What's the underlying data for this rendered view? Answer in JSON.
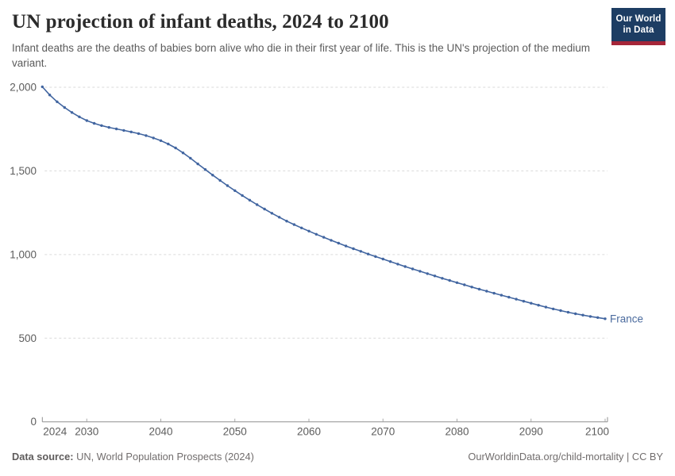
{
  "header": {
    "title": "UN projection of infant deaths, 2024 to 2100",
    "subtitle": "Infant deaths are the deaths of babies born alive who die in their first year of life. This is the UN's projection of the medium variant.",
    "logo": {
      "line1": "Our World",
      "line2": "in Data"
    }
  },
  "footer": {
    "datasource_label": "Data source:",
    "datasource_text": " UN, World Population Prospects (2024)",
    "link_text": "OurWorldinData.org/child-mortality | CC BY"
  },
  "colors": {
    "line": "#4165a0",
    "series_label": "#4b6b9e",
    "axis": "#8f8f8f",
    "tick": "#a8a8a8",
    "grid": "#dadada",
    "axis_text": "#5d5d5d",
    "logo_bg": "#1d3d63",
    "logo_accent": "#a52639"
  },
  "chart_data": {
    "type": "line",
    "title": "UN projection of infant deaths, 2024 to 2100",
    "xlabel": "",
    "ylabel": "",
    "x_range": [
      2024,
      2100
    ],
    "y_range": [
      0,
      2000
    ],
    "grid": "horizontal-dashed",
    "legend_position": "end-of-line",
    "xticks": [
      2024,
      2030,
      2040,
      2050,
      2060,
      2070,
      2080,
      2090,
      2100
    ],
    "yticks": [
      0,
      500,
      1000,
      1500,
      2000
    ],
    "x": [
      2024,
      2025,
      2026,
      2027,
      2028,
      2029,
      2030,
      2031,
      2032,
      2033,
      2034,
      2035,
      2036,
      2037,
      2038,
      2039,
      2040,
      2041,
      2042,
      2043,
      2044,
      2045,
      2046,
      2047,
      2048,
      2049,
      2050,
      2051,
      2052,
      2053,
      2054,
      2055,
      2056,
      2057,
      2058,
      2059,
      2060,
      2061,
      2062,
      2063,
      2064,
      2065,
      2066,
      2067,
      2068,
      2069,
      2070,
      2071,
      2072,
      2073,
      2074,
      2075,
      2076,
      2077,
      2078,
      2079,
      2080,
      2081,
      2082,
      2083,
      2084,
      2085,
      2086,
      2087,
      2088,
      2089,
      2090,
      2091,
      2092,
      2093,
      2094,
      2095,
      2096,
      2097,
      2098,
      2099,
      2100
    ],
    "series": [
      {
        "name": "France",
        "values": [
          2003,
          1954,
          1913,
          1879,
          1849,
          1823,
          1801,
          1784,
          1771,
          1760,
          1751,
          1742,
          1733,
          1723,
          1711,
          1697,
          1681,
          1661,
          1637,
          1608,
          1576,
          1542,
          1508,
          1475,
          1443,
          1412,
          1382,
          1353,
          1325,
          1298,
          1272,
          1247,
          1223,
          1200,
          1179,
          1159,
          1140,
          1121,
          1103,
          1085,
          1068,
          1051,
          1035,
          1019,
          1003,
          988,
          973,
          958,
          943,
          928,
          914,
          900,
          886,
          872,
          858,
          845,
          832,
          819,
          806,
          793,
          781,
          769,
          757,
          745,
          733,
          721,
          709,
          697,
          686,
          675,
          665,
          655,
          646,
          638,
          630,
          623,
          616
        ]
      }
    ]
  }
}
